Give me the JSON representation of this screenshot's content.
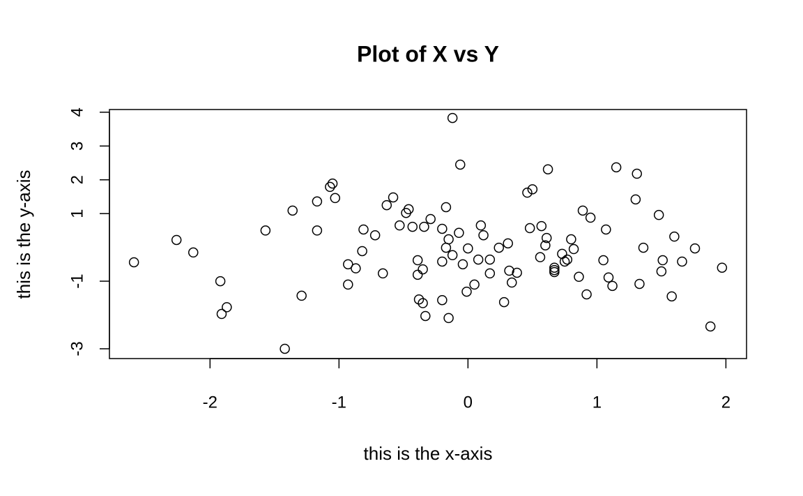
{
  "chart_data": {
    "type": "scatter",
    "title": "Plot of X vs Y",
    "x_label": "this is the x-axis",
    "y_label": "this is the y-axis",
    "x": [
      -2.59,
      -2.26,
      -2.13,
      -1.92,
      -1.91,
      -1.87,
      -1.57,
      -1.42,
      -1.36,
      -1.29,
      -1.17,
      -1.17,
      -1.07,
      -1.05,
      -1.03,
      -0.93,
      -0.93,
      -0.87,
      -0.82,
      -0.81,
      -0.72,
      -0.66,
      -0.63,
      -0.58,
      -0.53,
      -0.48,
      -0.46,
      -0.43,
      -0.39,
      -0.39,
      -0.38,
      -0.35,
      -0.35,
      -0.34,
      -0.33,
      -0.29,
      -0.2,
      -0.2,
      -0.2,
      -0.17,
      -0.17,
      -0.15,
      -0.15,
      -0.12,
      -0.12,
      -0.07,
      -0.06,
      -0.04,
      -0.01,
      0.0,
      0.05,
      0.08,
      0.1,
      0.12,
      0.17,
      0.17,
      0.24,
      0.28,
      0.31,
      0.32,
      0.34,
      0.38,
      0.46,
      0.48,
      0.5,
      0.56,
      0.57,
      0.6,
      0.61,
      0.62,
      0.67,
      0.67,
      0.67,
      0.73,
      0.75,
      0.77,
      0.8,
      0.82,
      0.86,
      0.89,
      0.92,
      0.95,
      1.05,
      1.07,
      1.09,
      1.12,
      1.15,
      1.3,
      1.31,
      1.33,
      1.36,
      1.48,
      1.5,
      1.51,
      1.58,
      1.6,
      1.66,
      1.76,
      1.88,
      1.97
    ],
    "values": [
      -0.44,
      0.22,
      -0.15,
      -1.0,
      -1.97,
      -1.77,
      0.5,
      -3.0,
      1.09,
      -1.43,
      0.5,
      1.36,
      1.79,
      1.89,
      1.46,
      -0.5,
      -1.1,
      -0.62,
      -0.11,
      0.53,
      0.36,
      -0.77,
      1.25,
      1.48,
      0.65,
      1.02,
      1.13,
      0.61,
      -0.38,
      -0.81,
      -1.54,
      -1.65,
      -0.65,
      0.61,
      -2.03,
      0.84,
      -1.56,
      -0.42,
      0.55,
      1.19,
      -0.01,
      0.24,
      -2.09,
      -0.23,
      3.83,
      0.43,
      2.45,
      -0.5,
      -1.31,
      -0.03,
      -1.1,
      -0.36,
      0.65,
      0.36,
      -0.36,
      -0.77,
      -0.01,
      -1.62,
      0.12,
      -0.69,
      -1.04,
      -0.75,
      1.62,
      0.57,
      1.72,
      -0.29,
      0.63,
      0.06,
      0.28,
      2.31,
      -0.6,
      -0.67,
      -0.73,
      -0.19,
      -0.42,
      -0.36,
      0.24,
      -0.05,
      -0.87,
      1.09,
      -1.39,
      0.88,
      -0.38,
      0.53,
      -0.89,
      -1.14,
      2.37,
      1.42,
      2.18,
      -1.08,
      -0.01,
      0.96,
      -0.71,
      -0.38,
      -1.45,
      0.32,
      -0.42,
      -0.03,
      -2.34,
      -0.6
    ],
    "color": "#000000",
    "xlim": [
      -2.78,
      2.16
    ],
    "ylim": [
      -3.29,
      4.08
    ],
    "xticks": [
      -2,
      -1,
      0,
      1,
      2
    ],
    "yticks": [
      -3,
      -1,
      1,
      2,
      3,
      4
    ]
  }
}
